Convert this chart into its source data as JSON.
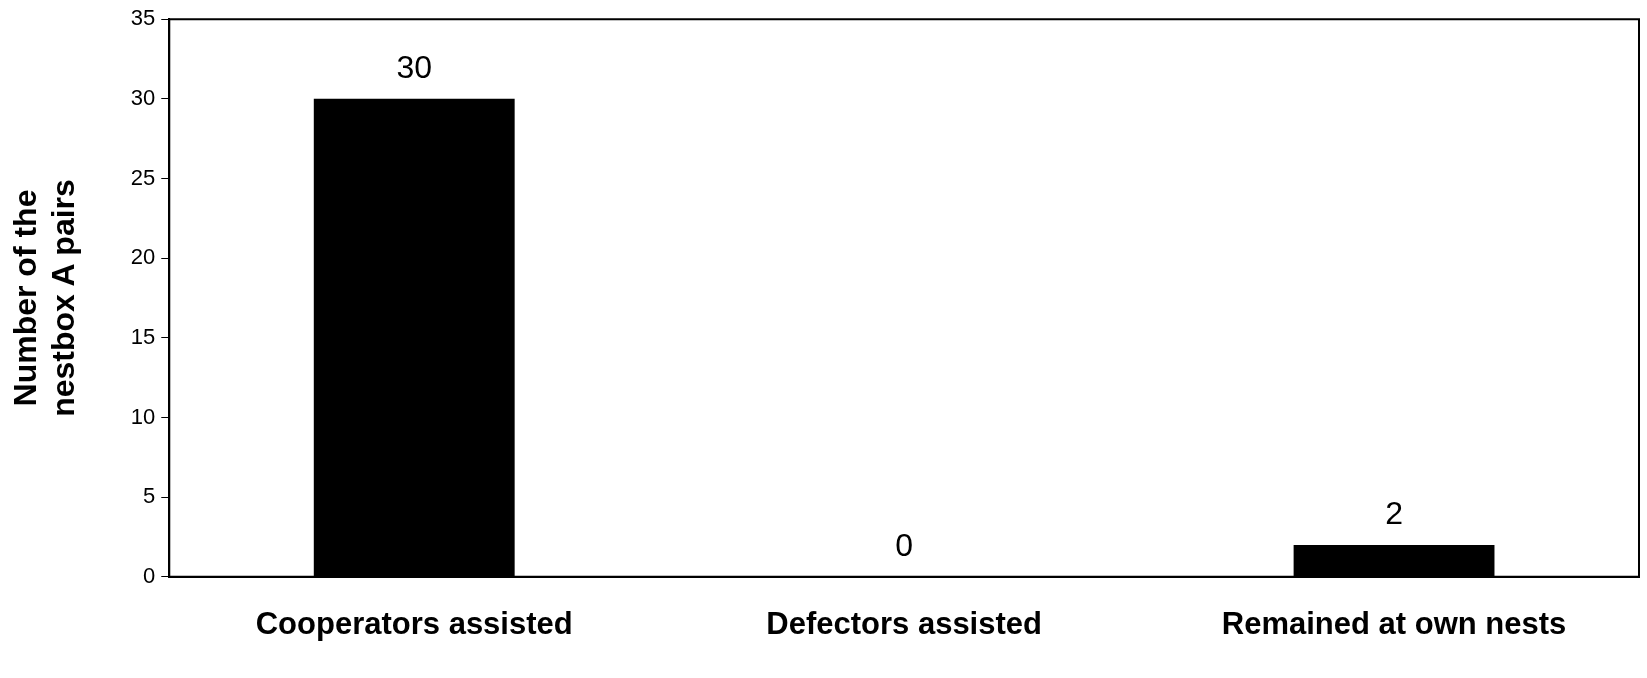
{
  "chart_data": {
    "type": "bar",
    "ylabel": "Number of the nestbox A pairs",
    "categories": [
      "Cooperators assisted",
      "Defectors assisted",
      "Remained at own nests"
    ],
    "values": [
      30,
      0,
      2
    ],
    "color": "#000000",
    "ylim": [
      0,
      35
    ],
    "yticks": [
      0,
      5,
      10,
      15,
      20,
      25,
      30,
      35
    ],
    "grid": false,
    "legend": false,
    "data_labels": true
  }
}
